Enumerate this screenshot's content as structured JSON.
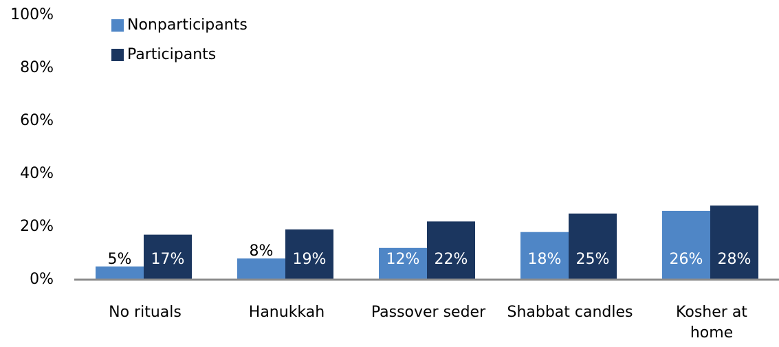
{
  "chart_data": {
    "type": "bar",
    "categories": [
      "No rituals",
      "Hanukkah",
      "Passover seder",
      "Shabbat candles",
      "Kosher at\nhome"
    ],
    "series": [
      {
        "name": "Nonparticipants",
        "color": "#4f86c6",
        "values": [
          5,
          8,
          12,
          18,
          26
        ],
        "value_labels": [
          "5%",
          "8%",
          "12%",
          "18%",
          "26%"
        ]
      },
      {
        "name": "Participants",
        "color": "#1b365f",
        "values": [
          17,
          19,
          22,
          25,
          28
        ],
        "value_labels": [
          "17%",
          "19%",
          "22%",
          "25%",
          "28%"
        ]
      }
    ],
    "ylim": [
      0,
      100
    ],
    "yticks": [
      {
        "value": 0,
        "label": "0%"
      },
      {
        "value": 20,
        "label": "20%"
      },
      {
        "value": 40,
        "label": "40%"
      },
      {
        "value": 60,
        "label": "60%"
      },
      {
        "value": 80,
        "label": "80%"
      },
      {
        "value": 100,
        "label": "100%"
      }
    ],
    "legend": "top-left",
    "grid": false
  }
}
